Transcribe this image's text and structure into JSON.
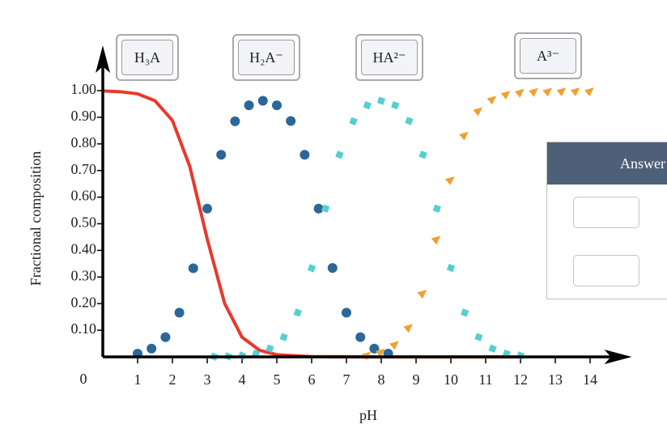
{
  "chart_data": {
    "type": "scatter",
    "xlabel": "pH",
    "ylabel": "Fractional composition",
    "origin_label": "0",
    "xlim": [
      0,
      15.2
    ],
    "ylim": [
      0,
      1.17
    ],
    "xticks": [
      1,
      2,
      3,
      4,
      5,
      6,
      7,
      8,
      9,
      10,
      11,
      12,
      13,
      14
    ],
    "yticks": [
      {
        "value": 0.1,
        "label": "0.10"
      },
      {
        "value": 0.2,
        "label": "0.20"
      },
      {
        "value": 0.3,
        "label": "0.30"
      },
      {
        "value": 0.4,
        "label": "0.40"
      },
      {
        "value": 0.5,
        "label": "0.50"
      },
      {
        "value": 0.6,
        "label": "0.60"
      },
      {
        "value": 0.7,
        "label": "0.70"
      },
      {
        "value": 0.8,
        "label": "0.80"
      },
      {
        "value": 0.9,
        "label": "0.90"
      },
      {
        "value": 1.0,
        "label": "1.00"
      }
    ],
    "series": [
      {
        "name": "H₃A",
        "color": "#e8392b",
        "marker": "line",
        "x": [
          0,
          0.5,
          1,
          1.5,
          2,
          2.5,
          3,
          3.5,
          4,
          4.5,
          5,
          6,
          8,
          10,
          12
        ],
        "values": [
          0.999,
          0.996,
          0.988,
          0.962,
          0.888,
          0.715,
          0.443,
          0.201,
          0.074,
          0.025,
          0.008,
          0.001,
          0,
          0,
          0
        ]
      },
      {
        "name": "H₂A⁻",
        "color": "#2b6799",
        "marker": "circle",
        "x": [
          1,
          1.4,
          1.8,
          2.2,
          2.6,
          3,
          3.4,
          3.8,
          4.2,
          4.6,
          5,
          5.4,
          5.8,
          6.2,
          6.6,
          7,
          7.4,
          7.8,
          8.2
        ],
        "values": [
          0.012,
          0.031,
          0.074,
          0.166,
          0.333,
          0.557,
          0.759,
          0.885,
          0.945,
          0.962,
          0.945,
          0.886,
          0.759,
          0.557,
          0.334,
          0.166,
          0.074,
          0.031,
          0.012
        ]
      },
      {
        "name": "HA²⁻",
        "color": "#55cfd0",
        "marker": "square",
        "x": [
          3.2,
          3.6,
          4,
          4.4,
          4.8,
          5.2,
          5.6,
          6,
          6.4,
          6.8,
          7.2,
          7.6,
          8,
          8.4,
          8.8,
          9.2,
          9.6,
          10,
          10.4,
          10.8,
          11.2,
          11.6,
          12
        ],
        "values": [
          0.0008,
          0.002,
          0.005,
          0.012,
          0.031,
          0.074,
          0.166,
          0.333,
          0.557,
          0.759,
          0.885,
          0.945,
          0.962,
          0.945,
          0.886,
          0.759,
          0.557,
          0.334,
          0.166,
          0.074,
          0.031,
          0.012,
          0.005
        ]
      },
      {
        "name": "A³⁻",
        "color": "#f0a030",
        "marker": "triangle",
        "x": [
          7.6,
          8,
          8.4,
          8.8,
          9.2,
          9.6,
          10,
          10.4,
          10.8,
          11.2,
          11.6,
          12,
          12.4,
          12.8,
          13.2,
          13.6,
          14
        ],
        "values": [
          0.008,
          0.02,
          0.048,
          0.112,
          0.24,
          0.443,
          0.666,
          0.834,
          0.926,
          0.969,
          0.988,
          0.995,
          0.998,
          0.999,
          1,
          1,
          1
        ]
      }
    ]
  },
  "answer_panel": {
    "header": "Answer"
  }
}
